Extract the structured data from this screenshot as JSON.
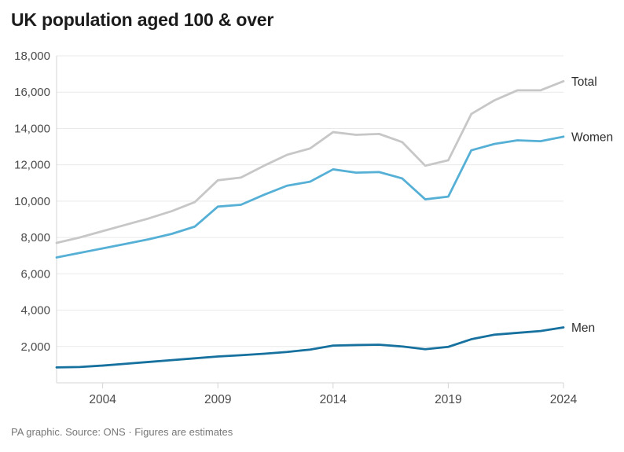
{
  "title": "UK population aged 100 & over",
  "footer": "PA graphic. Source: ONS · Figures are estimates",
  "colors": {
    "title_text": "#1b1b1b",
    "tick_text": "#4b4b4b",
    "series_label_text": "#2e2e2e",
    "gridline": "#e9e9e9",
    "axis": "#d4d4d4",
    "footer_text": "#777777",
    "total_line": "#c7c7c7",
    "women_line": "#56b0d6",
    "men_line": "#17719f"
  },
  "chart_data": {
    "type": "line",
    "title": "UK population aged 100 & over",
    "xlabel": "",
    "ylabel": "",
    "x": [
      2002,
      2003,
      2004,
      2005,
      2006,
      2007,
      2008,
      2009,
      2010,
      2011,
      2012,
      2013,
      2014,
      2015,
      2016,
      2017,
      2018,
      2019,
      2020,
      2021,
      2022,
      2023,
      2024
    ],
    "series": [
      {
        "name": "Total",
        "color": "#c7c7c7",
        "values": [
          7700,
          8000,
          8350,
          8700,
          9050,
          9450,
          9950,
          11150,
          11300,
          11950,
          12550,
          12900,
          13800,
          13650,
          13700,
          13250,
          11950,
          12250,
          14800,
          15550,
          16100,
          16100,
          16600
        ]
      },
      {
        "name": "Women",
        "color": "#56b0d6",
        "values": [
          6900,
          7150,
          7400,
          7650,
          7900,
          8200,
          8600,
          9700,
          9800,
          10350,
          10850,
          11070,
          11750,
          11570,
          11600,
          11250,
          10100,
          10250,
          12800,
          13150,
          13350,
          13300,
          13550
        ]
      },
      {
        "name": "Men",
        "color": "#17719f",
        "values": [
          850,
          870,
          950,
          1050,
          1150,
          1250,
          1350,
          1450,
          1520,
          1600,
          1700,
          1830,
          2050,
          2080,
          2100,
          2000,
          1850,
          1980,
          2400,
          2650,
          2750,
          2850,
          3050
        ]
      }
    ],
    "xlim": [
      2002,
      2024
    ],
    "ylim": [
      0,
      18000
    ],
    "xticks": [
      2004,
      2009,
      2014,
      2019,
      2024
    ],
    "yticks": [
      2000,
      4000,
      6000,
      8000,
      10000,
      12000,
      14000,
      16000,
      18000
    ],
    "grid": true,
    "legend_position": "right-of-line-end",
    "note": "Figures are estimates"
  }
}
